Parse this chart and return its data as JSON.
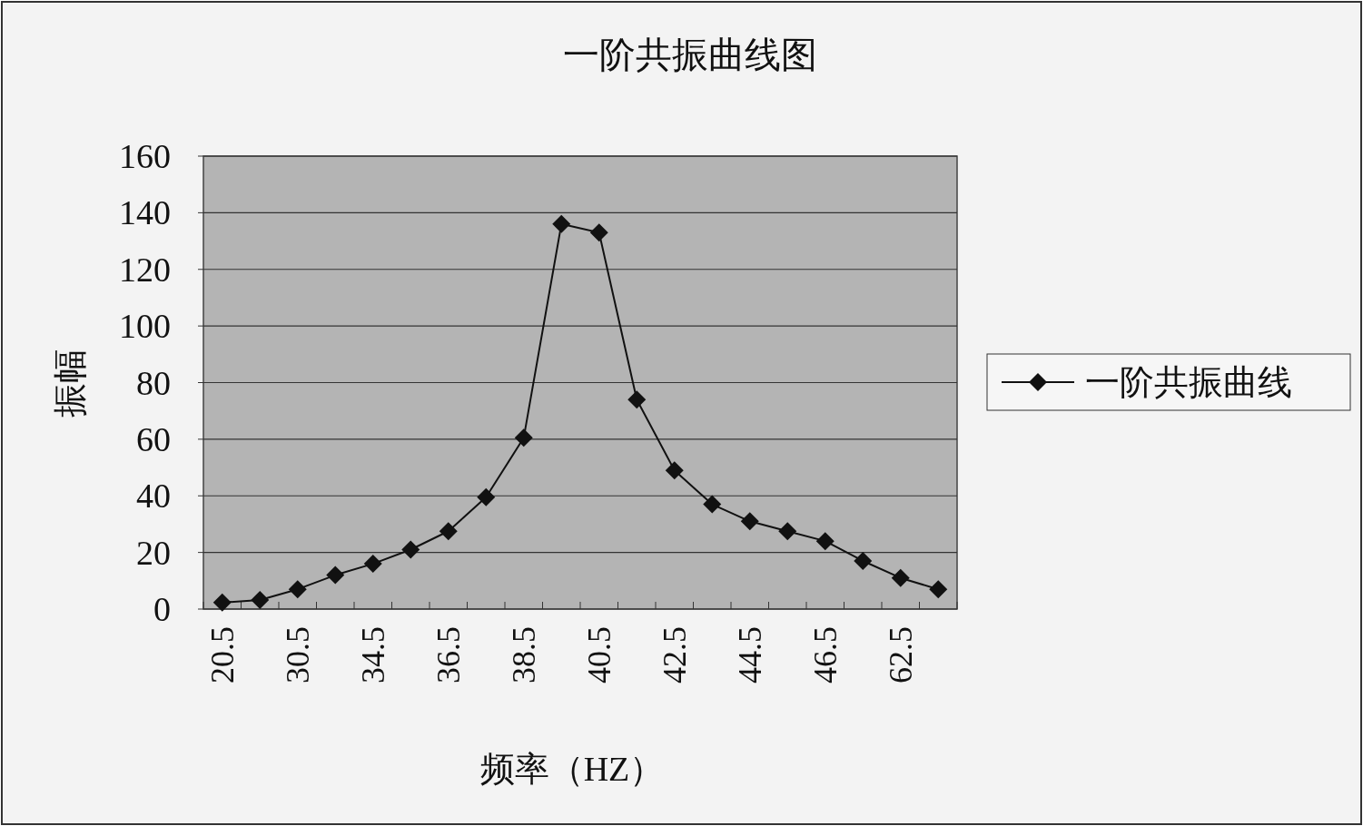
{
  "chart_data": {
    "type": "line",
    "title": "一阶共振曲线图",
    "xlabel": "频率（HZ）",
    "ylabel": "振幅",
    "categories": [
      "20.5",
      null,
      "30.5",
      null,
      "34.5",
      null,
      "36.5",
      null,
      "38.5",
      null,
      "40.5",
      null,
      "42.5",
      null,
      "44.5",
      null,
      "46.5",
      null,
      "62.5",
      null
    ],
    "series": [
      {
        "name": "一阶共振曲线",
        "color": "#111111",
        "values": [
          2.3,
          3.2,
          7,
          12,
          16,
          21,
          27.5,
          39.5,
          60.5,
          136,
          133,
          74,
          49,
          37,
          31,
          27.5,
          24,
          17,
          11,
          7
        ]
      }
    ],
    "ylim": [
      0,
      160
    ],
    "yticks": [
      0,
      20,
      40,
      60,
      80,
      100,
      120,
      140,
      160
    ],
    "grid": "y",
    "legend": "right",
    "marker": "diamond",
    "line_style": "solid"
  }
}
